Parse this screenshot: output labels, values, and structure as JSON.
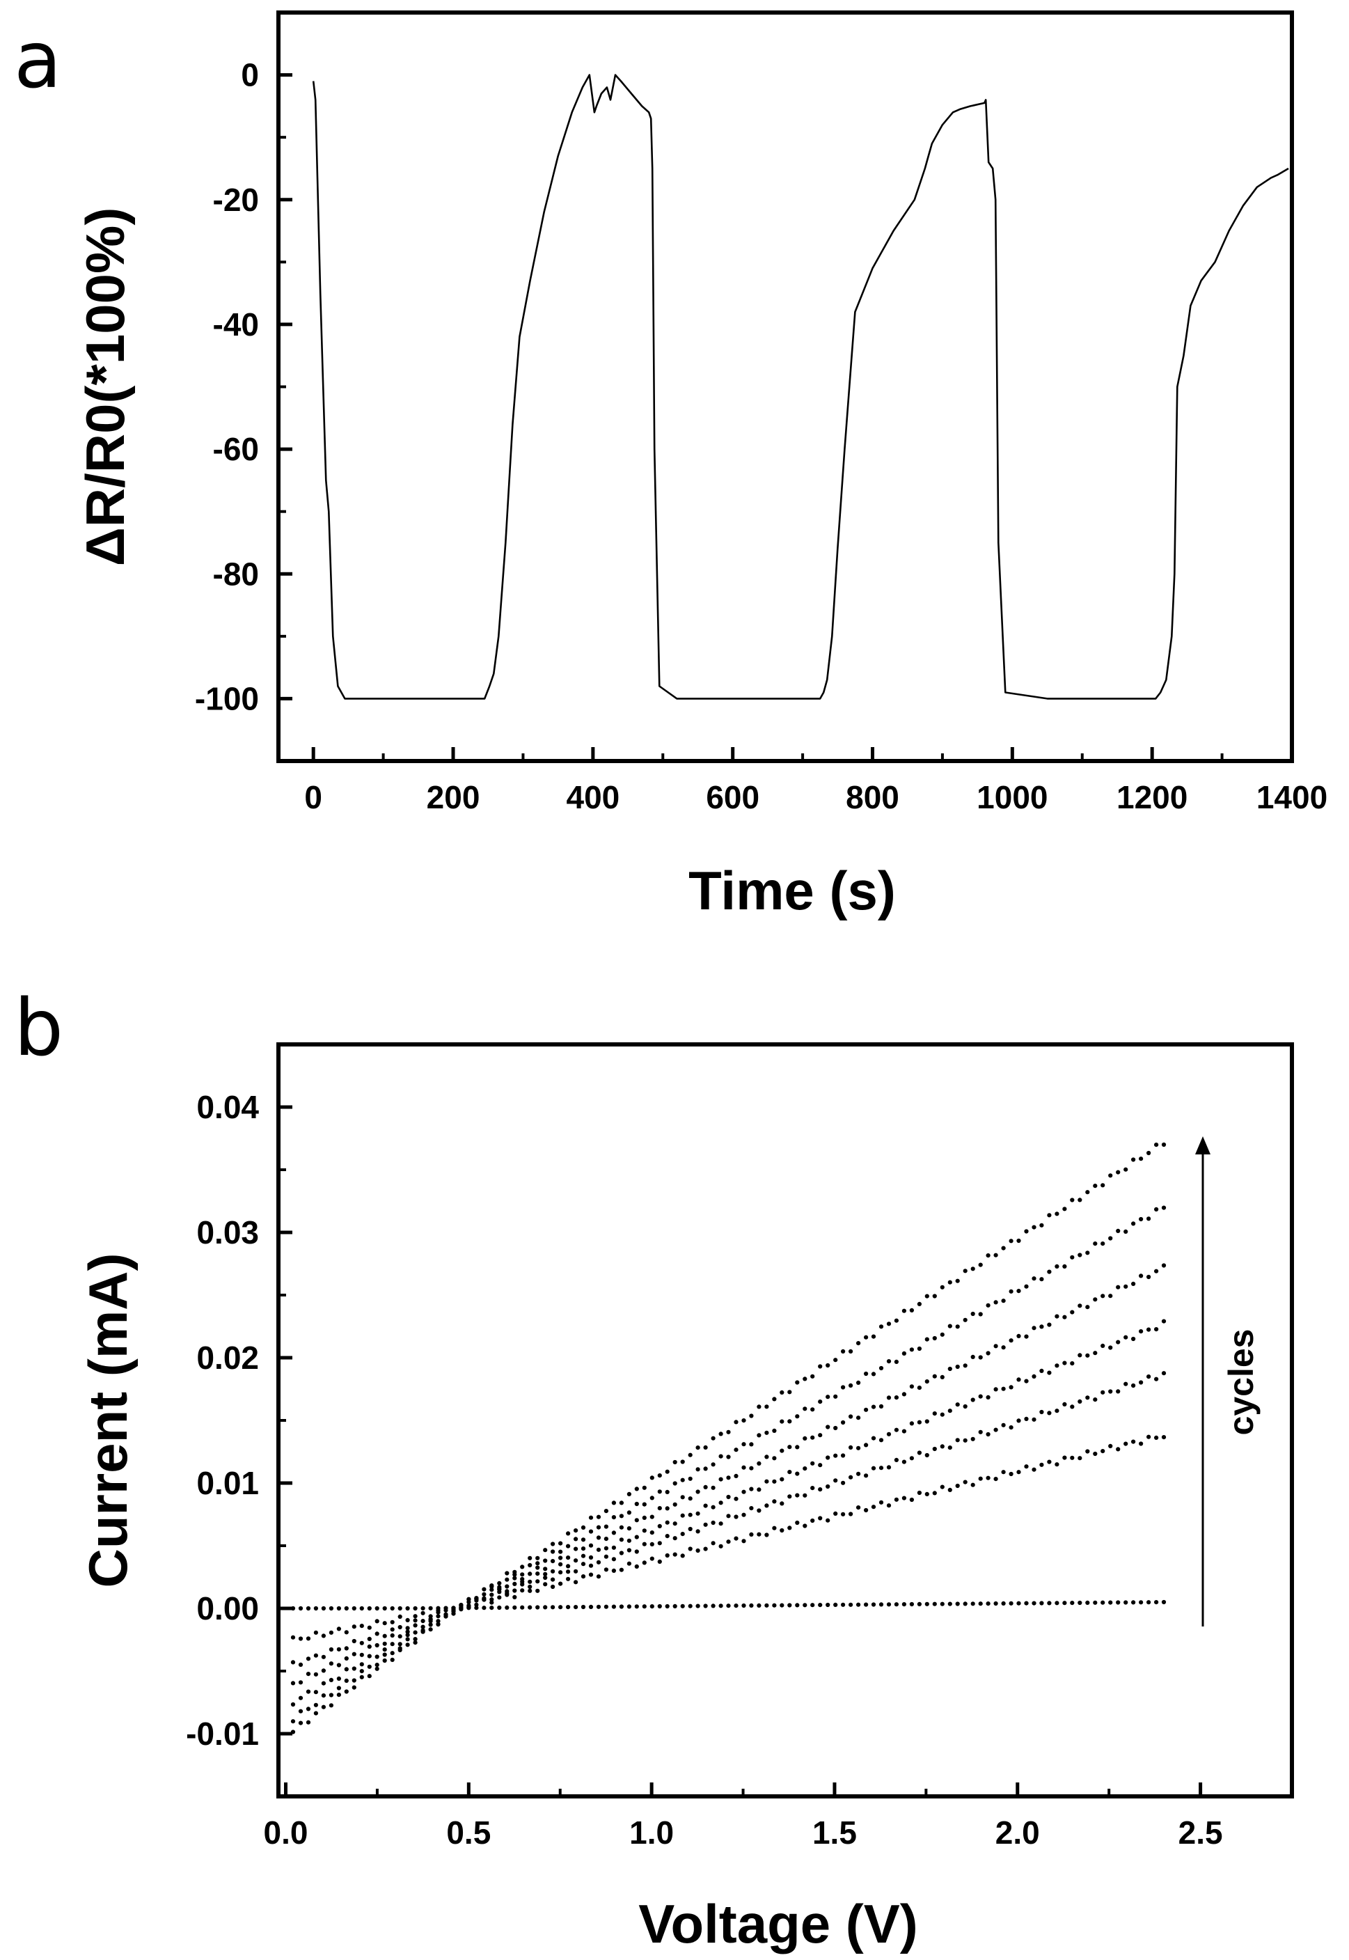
{
  "chart_data": [
    {
      "panel": "a",
      "type": "line",
      "xlabel": "Time (s)",
      "ylabel": "ΔR/R0(*100%)",
      "xlim": [
        -50,
        1400
      ],
      "ylim": [
        -110,
        10
      ],
      "xticks": [
        0,
        200,
        400,
        600,
        800,
        1000,
        1200,
        1400
      ],
      "xtick_labels": [
        "0",
        "200",
        "400",
        "600",
        "800",
        "1000",
        "1200",
        "1400"
      ],
      "yticks": [
        0,
        -20,
        -40,
        -60,
        -80,
        -100
      ],
      "ytick_labels": [
        "0",
        "-20",
        "-40",
        "-60",
        "-80",
        "-100"
      ],
      "x": [
        0,
        3,
        10,
        18,
        22,
        28,
        35,
        45,
        60,
        100,
        150,
        200,
        245,
        252,
        258,
        265,
        275,
        285,
        295,
        310,
        330,
        350,
        370,
        385,
        395,
        402,
        405,
        412,
        420,
        425,
        432,
        440,
        455,
        470,
        480,
        483,
        485,
        488,
        495,
        520,
        600,
        700,
        725,
        730,
        735,
        742,
        750,
        760,
        775,
        800,
        830,
        860,
        875,
        880,
        885,
        900,
        915,
        925,
        940,
        960,
        962,
        966,
        972,
        976,
        980,
        990,
        1050,
        1150,
        1205,
        1212,
        1220,
        1228,
        1232,
        1236,
        1245,
        1255,
        1270,
        1290,
        1310,
        1330,
        1350,
        1370,
        1380,
        1395
      ],
      "values": [
        -1,
        -4,
        -35,
        -65,
        -70,
        -90,
        -98,
        -100,
        -100,
        -100,
        -100,
        -100,
        -100,
        -98,
        -96,
        -90,
        -75,
        -56,
        -42,
        -33,
        -22,
        -13,
        -6,
        -2,
        0,
        -6,
        -5,
        -3,
        -2,
        -4,
        0,
        -1,
        -3,
        -5,
        -6,
        -7,
        -15,
        -60,
        -98,
        -100,
        -100,
        -100,
        -100,
        -99,
        -97,
        -90,
        -76,
        -60,
        -38,
        -31,
        -25,
        -20,
        -15,
        -13,
        -11,
        -8,
        -6,
        -5.5,
        -5,
        -4.5,
        -4,
        -14,
        -15,
        -20,
        -75,
        -99,
        -100,
        -100,
        -100,
        -99,
        -97,
        -90,
        -80,
        -50,
        -45,
        -37,
        -33,
        -30,
        -25,
        -21,
        -18,
        -16.5,
        -16,
        -15
      ]
    },
    {
      "panel": "b",
      "type": "scatter",
      "xlabel": "Voltage (V)",
      "ylabel": "Current (mA)",
      "xlim": [
        -0.02,
        2.75
      ],
      "ylim": [
        -0.015,
        0.045
      ],
      "xticks": [
        0.0,
        0.5,
        1.0,
        1.5,
        2.0,
        2.5
      ],
      "xtick_labels": [
        "0.0",
        "0.5",
        "1.0",
        "1.5",
        "2.0",
        "2.5"
      ],
      "yticks": [
        -0.01,
        0.0,
        0.01,
        0.02,
        0.03,
        0.04
      ],
      "ytick_labels": [
        "-0.01",
        "0.00",
        "0.01",
        "0.02",
        "0.03",
        "0.04"
      ],
      "annotation": "cycles",
      "x_range": [
        0.02,
        2.4
      ],
      "zero_crossing_v": 0.47,
      "series": [
        {
          "name": "cycle 1",
          "start_current": 0.0,
          "end_current": 0.0005
        },
        {
          "name": "cycle 2",
          "start_current": -0.0025,
          "end_current": 0.0138
        },
        {
          "name": "cycle 3",
          "start_current": -0.0045,
          "end_current": 0.0187
        },
        {
          "name": "cycle 4",
          "start_current": -0.006,
          "end_current": 0.0227
        },
        {
          "name": "cycle 5",
          "start_current": -0.0075,
          "end_current": 0.0272
        },
        {
          "name": "cycle 6",
          "start_current": -0.0088,
          "end_current": 0.032
        },
        {
          "name": "cycle 7",
          "start_current": -0.0098,
          "end_current": 0.0372
        }
      ]
    }
  ],
  "panels": {
    "a": {
      "label": "a"
    },
    "b": {
      "label": "b"
    }
  }
}
